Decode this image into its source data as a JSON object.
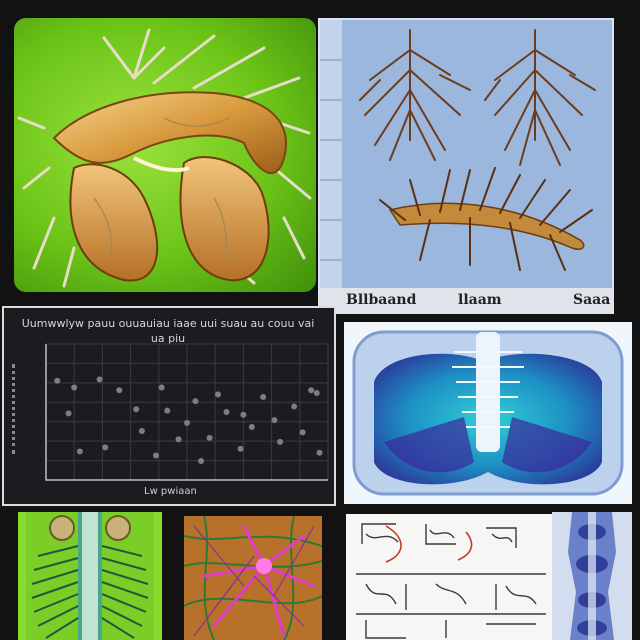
{
  "tiles": {
    "root_organ": {
      "icon": "root-organ-illustration-icon"
    },
    "root_specimens": {
      "icon": "branching-roots-icon",
      "strip_labels": [
        "Bllbaand",
        "llaam",
        "Saaa"
      ]
    },
    "scatter_chart": {
      "caption": "Uumwwlyw pauu ouuauiau iaae uui suau au couu vai ua piu",
      "footer": "Lw pwiaan"
    },
    "xray": {
      "icon": "xray-spine-icon"
    },
    "spine_green": {
      "icon": "spine-ribs-icon"
    },
    "root_magenta": {
      "icon": "magenta-root-network-icon"
    },
    "sketches": {
      "icon": "anatomy-sketch-icon"
    },
    "blue_column": {
      "icon": "blue-spine-column-icon"
    }
  },
  "chart_data": {
    "type": "scatter",
    "title": "Uumwwlyw pauu ouuauiau iaae uui suau au couu vai ua piu",
    "xlabel": "Lw pwiaan",
    "ylabel": "",
    "grid": true,
    "xlim": [
      0,
      10
    ],
    "ylim": [
      0,
      10
    ],
    "series": [
      {
        "values": [
          [
            0.4,
            7.3
          ],
          [
            1.0,
            6.8
          ],
          [
            1.9,
            7.4
          ],
          [
            2.6,
            6.6
          ],
          [
            3.2,
            5.2
          ],
          [
            3.4,
            3.6
          ],
          [
            4.1,
            6.8
          ],
          [
            4.3,
            5.1
          ],
          [
            5.0,
            4.2
          ],
          [
            5.3,
            5.8
          ],
          [
            5.8,
            3.1
          ],
          [
            6.1,
            6.3
          ],
          [
            6.4,
            5.0
          ],
          [
            6.9,
            2.3
          ],
          [
            7.0,
            4.8
          ],
          [
            7.3,
            3.9
          ],
          [
            7.7,
            6.1
          ],
          [
            8.1,
            4.4
          ],
          [
            8.3,
            2.8
          ],
          [
            8.8,
            5.4
          ],
          [
            9.1,
            3.5
          ],
          [
            9.4,
            6.6
          ],
          [
            9.7,
            2.0
          ],
          [
            2.1,
            2.4
          ],
          [
            1.2,
            2.1
          ],
          [
            3.9,
            1.8
          ],
          [
            5.5,
            1.4
          ],
          [
            9.6,
            6.4
          ],
          [
            0.8,
            4.9
          ],
          [
            4.7,
            3.0
          ]
        ]
      }
    ]
  }
}
